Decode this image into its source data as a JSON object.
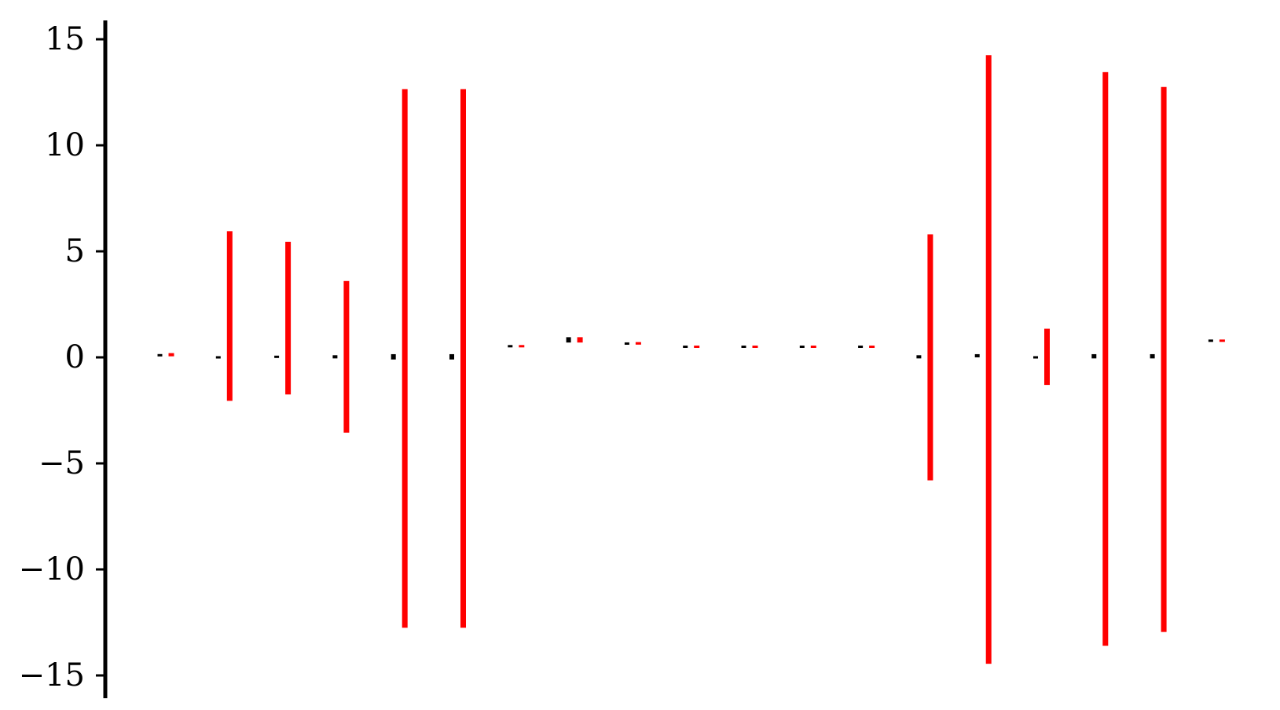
{
  "chart_data": {
    "type": "bar",
    "title": "",
    "xlabel": "",
    "ylabel": "",
    "ylim": [
      -16,
      16
    ],
    "yticks": [
      15,
      10,
      5,
      0,
      -5,
      -10,
      -15
    ],
    "ytick_labels": [
      "15",
      "10",
      "5",
      "0",
      "−5",
      "−10",
      "−15"
    ],
    "grid": false,
    "legend": "none",
    "n_groups": 19,
    "series": [
      {
        "color": "#000000",
        "kind": "small-interval",
        "low": [
          0.05,
          -0.02,
          0.0,
          -0.05,
          -0.1,
          -0.1,
          0.5,
          0.7,
          0.6,
          0.45,
          0.45,
          0.45,
          0.45,
          -0.05,
          0.0,
          -0.03,
          -0.05,
          -0.05,
          0.75
        ],
        "high": [
          0.15,
          0.02,
          0.05,
          0.1,
          0.15,
          0.15,
          0.55,
          0.95,
          0.7,
          0.55,
          0.55,
          0.55,
          0.55,
          0.1,
          0.15,
          0.03,
          0.15,
          0.15,
          0.82
        ]
      },
      {
        "color": "#ff0000",
        "kind": "interval",
        "low": [
          0.05,
          -2.05,
          -1.75,
          -3.55,
          -12.75,
          -12.75,
          0.5,
          0.7,
          0.6,
          0.45,
          0.45,
          0.45,
          0.45,
          -5.8,
          -14.45,
          -1.3,
          -13.6,
          -12.95,
          0.75
        ],
        "high": [
          0.2,
          5.95,
          5.45,
          3.6,
          12.65,
          12.65,
          0.55,
          0.95,
          0.72,
          0.55,
          0.55,
          0.55,
          0.55,
          5.8,
          14.25,
          1.35,
          13.45,
          12.75,
          0.82
        ]
      }
    ]
  }
}
